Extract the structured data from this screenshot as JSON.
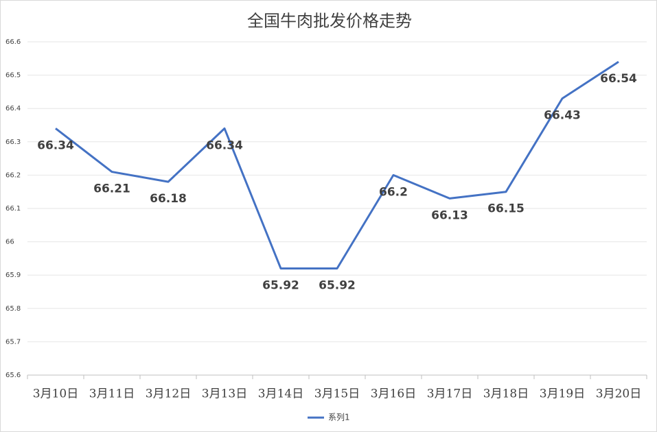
{
  "chart_data": {
    "type": "line",
    "title": "全国牛肉批发价格走势",
    "categories": [
      "3月10日",
      "3月11日",
      "3月12日",
      "3月13日",
      "3月14日",
      "3月15日",
      "3月16日",
      "3月17日",
      "3月18日",
      "3月19日",
      "3月20日"
    ],
    "series": [
      {
        "name": "系列1",
        "color": "#4472c4",
        "values": [
          66.34,
          66.21,
          66.18,
          66.34,
          65.92,
          65.92,
          66.2,
          66.13,
          66.15,
          66.43,
          66.54
        ]
      }
    ],
    "ylim": [
      65.6,
      66.6
    ],
    "yticks": [
      65.6,
      65.7,
      65.8,
      65.9,
      66,
      66.1,
      66.2,
      66.3,
      66.4,
      66.5,
      66.6
    ],
    "grid": true,
    "legend": "bottom"
  }
}
